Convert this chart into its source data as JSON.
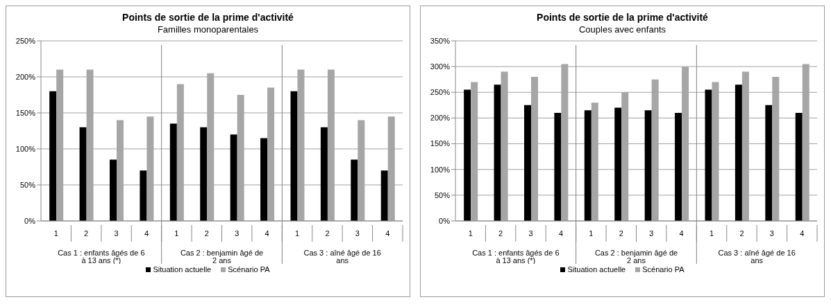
{
  "chart_data": [
    {
      "type": "bar",
      "title": "Points de sortie de la prime d'activité",
      "subtitle": "Familles monoparentales",
      "categories": [
        "1",
        "2",
        "3",
        "4",
        "1",
        "2",
        "3",
        "4",
        "1",
        "2",
        "3",
        "4"
      ],
      "annotations": [
        "Cas 1 : enfants âgés de 6 à 13 ans (*)",
        "Cas 2 : benjamin âgé de 2 ans",
        "Cas 3 : aîné âgé de 16 ans"
      ],
      "series": [
        {
          "name": "Situation actuelle",
          "color": "#000000",
          "values": [
            180,
            130,
            85,
            70,
            135,
            130,
            120,
            115,
            180,
            130,
            85,
            70
          ]
        },
        {
          "name": "Scénario PA",
          "color": "#a6a6a6",
          "values": [
            210,
            210,
            140,
            145,
            190,
            205,
            175,
            185,
            210,
            210,
            140,
            145
          ]
        }
      ],
      "ylim": [
        0,
        250
      ],
      "yticks": [
        {
          "value": 0,
          "label": "0%"
        },
        {
          "value": 50,
          "label": "50%"
        },
        {
          "value": 100,
          "label": "100%"
        },
        {
          "value": 150,
          "label": "150%"
        },
        {
          "value": 200,
          "label": "200%"
        },
        {
          "value": 250,
          "label": "250%"
        }
      ],
      "grid": "y",
      "legend": "bottom"
    },
    {
      "type": "bar",
      "title": "Points de sortie de la prime d'activité",
      "subtitle": "Couples avec enfants",
      "categories": [
        "1",
        "2",
        "3",
        "4",
        "1",
        "2",
        "3",
        "4",
        "1",
        "2",
        "3",
        "4"
      ],
      "annotations": [
        "Cas 1 : enfants âgés de 6 à 13 ans (*)",
        "Cas 2 : benjamin âgé de 2 ans",
        "Cas 3 : aîné âgé de 16 ans"
      ],
      "series": [
        {
          "name": "Situation actuelle",
          "color": "#000000",
          "values": [
            255,
            265,
            225,
            210,
            215,
            220,
            215,
            210,
            255,
            265,
            225,
            210
          ]
        },
        {
          "name": "Scénario PA",
          "color": "#a6a6a6",
          "values": [
            270,
            290,
            280,
            305,
            230,
            250,
            275,
            300,
            270,
            290,
            280,
            305
          ]
        }
      ],
      "ylim": [
        0,
        350
      ],
      "yticks": [
        {
          "value": 0,
          "label": "0%"
        },
        {
          "value": 50,
          "label": "50%"
        },
        {
          "value": 100,
          "label": "100%"
        },
        {
          "value": 150,
          "label": "150%"
        },
        {
          "value": 200,
          "label": "200%"
        },
        {
          "value": 250,
          "label": "250%"
        },
        {
          "value": 300,
          "label": "300%"
        },
        {
          "value": 350,
          "label": "350%"
        }
      ],
      "grid": "y",
      "legend": "bottom"
    }
  ]
}
